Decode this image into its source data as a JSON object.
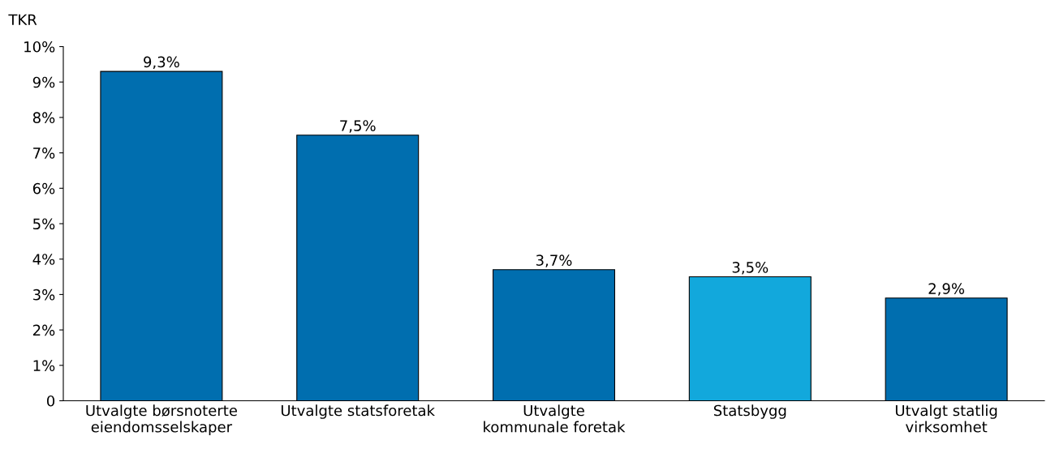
{
  "chart_data": {
    "type": "bar",
    "ylabel": "TKR",
    "categories": [
      "Utvalgte børsnoterte\neiendomsselskaper",
      "Utvalgte statsforetak",
      "Utvalgte\nkommunale foretak",
      "Statsbygg",
      "Utvalgt statlig\nvirksomhet"
    ],
    "values": [
      9.3,
      7.5,
      3.7,
      3.5,
      2.9
    ],
    "colors": [
      "#006eaf",
      "#006eaf",
      "#006eaf",
      "#12a8dc",
      "#006eaf"
    ],
    "value_labels": [
      "9,3%",
      "7,5%",
      "3,7%",
      "3,5%",
      "2,9%"
    ],
    "ylim": [
      0,
      10
    ],
    "yticks": [
      0,
      {
        "value": 1,
        "label": "1%"
      },
      {
        "value": 2,
        "label": "2%"
      },
      {
        "value": 3,
        "label": "3%"
      },
      {
        "value": 4,
        "label": "4%"
      },
      {
        "value": 5,
        "label": "5%"
      },
      {
        "value": 6,
        "label": "6%"
      },
      {
        "value": 7,
        "label": "7%"
      },
      {
        "value": 8,
        "label": "8%"
      },
      {
        "value": 9,
        "label": "9%"
      },
      {
        "value": 10,
        "label": "10%"
      }
    ],
    "grid": false,
    "legend": false
  }
}
